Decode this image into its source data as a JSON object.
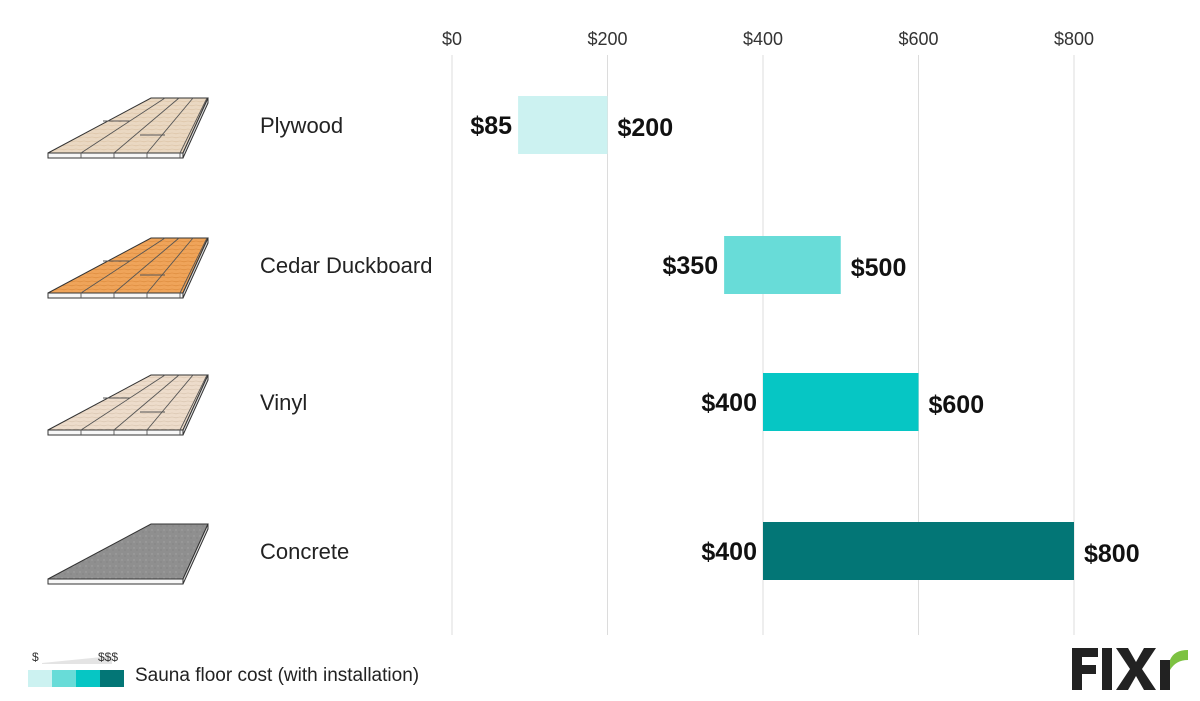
{
  "chart_data": {
    "type": "bar",
    "orientation": "horizontal-floating",
    "x_ticks": [
      "$0",
      "$200",
      "$400",
      "$600",
      "$800"
    ],
    "x_tick_values": [
      0,
      200,
      400,
      600,
      800
    ],
    "xlim": [
      0,
      800
    ],
    "grid": true,
    "categories": [
      "Plywood",
      "Cedar Duckboard",
      "Vinyl",
      "Concrete"
    ],
    "series": [
      {
        "low": 85,
        "high": 200,
        "low_label": "$85",
        "high_label": "$200",
        "color": "#ccf2f1"
      },
      {
        "low": 350,
        "high": 500,
        "low_label": "$350",
        "high_label": "$500",
        "color": "#68dcd8"
      },
      {
        "low": 400,
        "high": 600,
        "low_label": "$400",
        "high_label": "$600",
        "color": "#06c6c4"
      },
      {
        "low": 400,
        "high": 800,
        "low_label": "$400",
        "high_label": "$800",
        "color": "#037676"
      }
    ],
    "icon_names": [
      "plywood-floor-icon",
      "cedar-duckboard-floor-icon",
      "vinyl-floor-icon",
      "concrete-floor-icon"
    ]
  },
  "legend": {
    "low_symbol": "$",
    "high_symbol": "$$$",
    "label": "Sauna floor cost (with installation)",
    "swatch_colors": [
      "#ccf2f1",
      "#68dcd8",
      "#06c6c4",
      "#037676"
    ]
  },
  "brand": {
    "name": "FIXR",
    "color": "#222222",
    "accent": "#7dc242"
  }
}
